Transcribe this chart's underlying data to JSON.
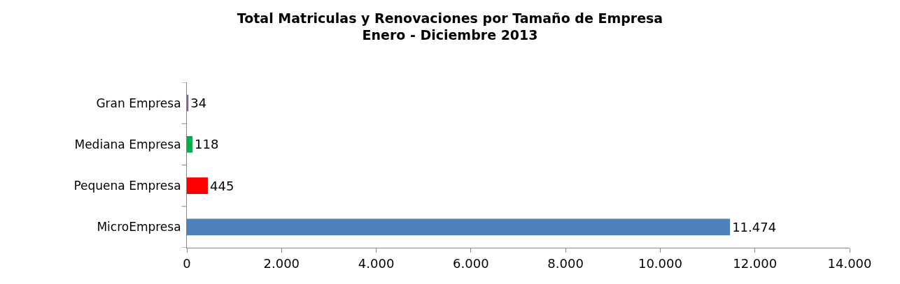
{
  "chart_data": {
    "type": "bar",
    "orientation": "horizontal",
    "title": "Total Matriculas y Renovaciones por Tamaño de Empresa",
    "subtitle": "Enero - Diciembre 2013",
    "categories": [
      "Gran Empresa",
      "Mediana Empresa",
      "Pequena Empresa",
      "MicroEmpresa"
    ],
    "values": [
      34,
      118,
      445,
      11474
    ],
    "colors": [
      "#7f5fa0",
      "#00b050",
      "#ff0000",
      "#4f81bd"
    ],
    "value_labels": [
      "34",
      "118",
      "445",
      "11.474"
    ],
    "xlim": [
      0,
      14000
    ],
    "xticks": [
      0,
      {
        "value": 2000,
        "label": "2.000"
      },
      {
        "value": 4000,
        "label": "4.000"
      },
      {
        "value": 6000,
        "label": "6.000"
      },
      {
        "value": 8000,
        "label": "8.000"
      },
      {
        "value": 10000,
        "label": "10.000"
      },
      {
        "value": 12000,
        "label": "12.000"
      },
      {
        "value": 14000,
        "label": "14.000"
      }
    ],
    "grid": false
  }
}
